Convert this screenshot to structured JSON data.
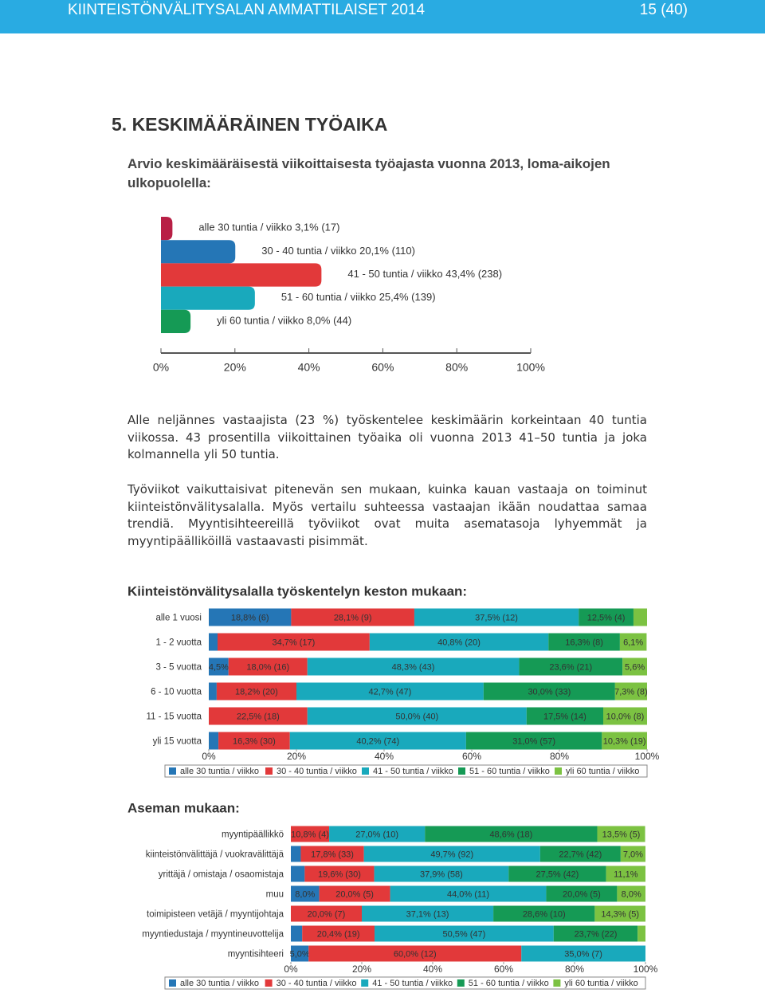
{
  "header": {
    "title": "KIINTEISTÖNVÄLITYSALAN AMMATTILAISET 2014",
    "page": "15 (40)"
  },
  "section_title": "5. KESKIMÄÄRÄINEN TYÖAIKA",
  "subtitle": "Arvio keskimääräisestä viikoittaisesta työajasta vuonna 2013, loma-aikojen ulkopuolella:",
  "paragraphs": [
    "Alle neljännes vastaajista (23 %) työskentelee keskimäärin korkeintaan 40 tuntia viikossa. 43 prosentilla viikoittainen työaika oli vuonna 2013 41–50 tuntia ja joka kolmannella yli 50 tuntia.",
    "Työviikot vaikuttaisivat pitenevän sen mukaan, kuinka kauan vastaaja on toiminut kiinteistönvälitysalalla. Myös vertailu suhteessa vastaajan ikään noudattaa samaa trendiä. Myyntisihteereillä työviikot ovat muita asematasoja lyhyemmät ja myyntipäälliköillä vastaavasti pisimmät."
  ],
  "chart_data": [
    {
      "type": "bar",
      "categories": [
        "alle 30 tuntia / viikko",
        "30 - 40 tuntia / viikko",
        "41 - 50 tuntia / viikko",
        "51 - 60 tuntia / viikko",
        "yli 60 tuntia / viikko"
      ],
      "values": [
        3.1,
        20.1,
        43.4,
        25.4,
        8.0
      ],
      "value_labels": [
        "3,1% (17)",
        "20,1% (110)",
        "43,4% (238)",
        "25,4% (139)",
        "8,0% (44)"
      ],
      "colors": [
        "#b81f45",
        "#2576b6",
        "#e2393a",
        "#19a9bc",
        "#159a55"
      ],
      "xlim": [
        0,
        100
      ],
      "xticks": [
        {
          "value": 0,
          "label": "0%"
        },
        {
          "value": 20,
          "label": "20%"
        },
        {
          "value": 40,
          "label": "40%"
        },
        {
          "value": 60,
          "label": "60%"
        },
        {
          "value": 80,
          "label": "80%"
        },
        {
          "value": 100,
          "label": "100%"
        }
      ]
    },
    {
      "type": "stacked_bar",
      "title": "Kiinteistönvälitysalalla työskentelyn keston mukaan:",
      "categories": [
        "alle 1 vuosi",
        "1 - 2 vuotta",
        "3 - 5 vuotta",
        "6 - 10 vuotta",
        "11 - 15 vuotta",
        "yli 15 vuotta"
      ],
      "series": [
        {
          "name": "alle 30 tuntia / viikko",
          "color": "#2576b6",
          "values": [
            18.8,
            2.0,
            4.5,
            1.8,
            0,
            2.2
          ],
          "value_labels": [
            "18,8% (6)",
            null,
            "4,5%",
            null,
            null,
            null
          ]
        },
        {
          "name": "30 - 40 tuntia / viikko",
          "color": "#e2393a",
          "values": [
            28.1,
            34.7,
            18.0,
            18.2,
            22.5,
            16.3
          ],
          "value_labels": [
            "28,1% (9)",
            "34,7% (17)",
            "18,0% (16)",
            "18,2% (20)",
            "22,5% (18)",
            "16,3% (30)"
          ]
        },
        {
          "name": "41 - 50 tuntia / viikko",
          "color": "#19a9bc",
          "values": [
            37.5,
            40.8,
            48.3,
            42.7,
            50.0,
            40.2
          ],
          "value_labels": [
            "37,5% (12)",
            "40,8% (20)",
            "48,3% (43)",
            "42,7% (47)",
            "50,0% (40)",
            "40,2% (74)"
          ]
        },
        {
          "name": "51 - 60 tuntia / viikko",
          "color": "#159a55",
          "values": [
            12.5,
            16.3,
            23.6,
            30.0,
            17.5,
            31.0
          ],
          "value_labels": [
            "12,5% (4)",
            "16,3% (8)",
            "23,6% (21)",
            "30,0% (33)",
            "17,5% (14)",
            "31,0% (57)"
          ]
        },
        {
          "name": "yli 60 tuntia / viikko",
          "color": "#7cc242",
          "values": [
            3.1,
            6.1,
            5.6,
            7.3,
            10.0,
            10.3
          ],
          "value_labels": [
            null,
            "6,1%",
            "5,6%",
            "7,3% (8)",
            "10,0% (8)",
            "10,3% (19)"
          ]
        }
      ],
      "xlim": [
        0,
        100
      ],
      "xticks": [
        {
          "value": 0,
          "label": "0%"
        },
        {
          "value": 20,
          "label": "20%"
        },
        {
          "value": 40,
          "label": "40%"
        },
        {
          "value": 60,
          "label": "60%"
        },
        {
          "value": 80,
          "label": "80%"
        },
        {
          "value": 100,
          "label": "100%"
        }
      ]
    },
    {
      "type": "stacked_bar",
      "title": "Aseman mukaan:",
      "categories": [
        "myyntipäällikkö",
        "kiinteistönvälittäjä / vuokravälittäjä",
        "yrittäjä / omistaja / osaomistaja",
        "muu",
        "toimipisteen vetäjä / myyntijohtaja",
        "myyntiedustaja / myyntineuvottelija",
        "myyntisihteeri"
      ],
      "series": [
        {
          "name": "alle 30 tuntia / viikko",
          "color": "#2576b6",
          "values": [
            0,
            2.8,
            3.9,
            8.0,
            0,
            3.2,
            5.0
          ],
          "value_labels": [
            null,
            null,
            null,
            "8,0%",
            null,
            null,
            "5,0%"
          ]
        },
        {
          "name": "30 - 40 tuntia / viikko",
          "color": "#e2393a",
          "values": [
            10.8,
            17.8,
            19.6,
            20.0,
            20.0,
            20.4,
            60.0
          ],
          "value_labels": [
            "10,8% (4)",
            "17,8% (33)",
            "19,6% (30)",
            "20,0% (5)",
            "20,0% (7)",
            "20,4% (19)",
            "60,0% (12)"
          ]
        },
        {
          "name": "41 - 50 tuntia / viikko",
          "color": "#19a9bc",
          "values": [
            27.0,
            49.7,
            37.9,
            44.0,
            37.1,
            50.5,
            35.0
          ],
          "value_labels": [
            "27,0% (10)",
            "49,7% (92)",
            "37,9% (58)",
            "44,0% (11)",
            "37,1% (13)",
            "50,5% (47)",
            "35,0% (7)"
          ]
        },
        {
          "name": "51 - 60 tuntia / viikko",
          "color": "#159a55",
          "values": [
            48.6,
            22.7,
            27.5,
            20.0,
            28.6,
            23.7,
            0
          ],
          "value_labels": [
            "48,6% (18)",
            "22,7% (42)",
            "27,5% (42)",
            "20,0% (5)",
            "28,6% (10)",
            "23,7% (22)",
            null
          ]
        },
        {
          "name": "yli 60 tuntia / viikko",
          "color": "#7cc242",
          "values": [
            13.5,
            7.0,
            11.1,
            8.0,
            14.3,
            2.2,
            0
          ],
          "value_labels": [
            "13,5% (5)",
            "7,0%",
            "11,1%",
            "8,0%",
            "14,3% (5)",
            null,
            null
          ]
        }
      ],
      "xlim": [
        0,
        100
      ],
      "xticks": [
        {
          "value": 0,
          "label": "0%"
        },
        {
          "value": 20,
          "label": "20%"
        },
        {
          "value": 40,
          "label": "40%"
        },
        {
          "value": 60,
          "label": "60%"
        },
        {
          "value": 80,
          "label": "80%"
        },
        {
          "value": 100,
          "label": "100%"
        }
      ]
    }
  ]
}
